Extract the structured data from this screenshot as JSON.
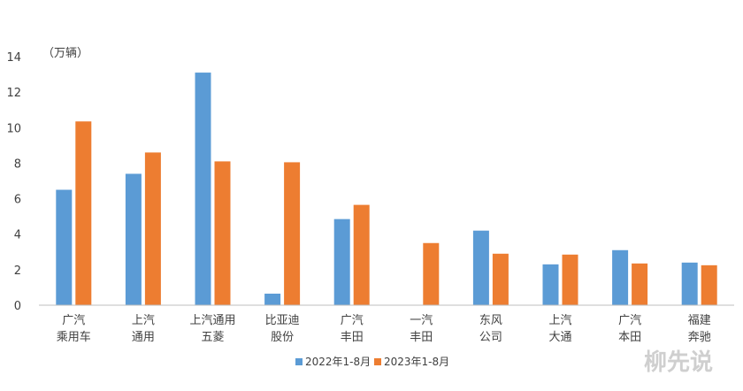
{
  "chart_data": {
    "type": "bar",
    "ylabel": "（万辆）",
    "ylim": [
      0,
      14
    ],
    "yticks": [
      "0",
      "2",
      "4",
      "6",
      "8",
      "10",
      "12",
      "14"
    ],
    "categories": [
      [
        "广汽",
        "乘用车"
      ],
      [
        "上汽",
        "通用"
      ],
      [
        "上汽通用",
        "五菱"
      ],
      [
        "比亚迪",
        "股份"
      ],
      [
        "广汽",
        "丰田"
      ],
      [
        "一汽",
        "丰田"
      ],
      [
        "东风",
        "公司"
      ],
      [
        "上汽",
        "大通"
      ],
      [
        "广汽",
        "本田"
      ],
      [
        "福建",
        "奔驰"
      ]
    ],
    "series": [
      {
        "name": "2022年1-8月",
        "color": "#5B9BD5",
        "values": [
          6.5,
          7.4,
          13.1,
          0.65,
          4.85,
          0,
          4.2,
          2.3,
          3.1,
          2.4
        ]
      },
      {
        "name": "2023年1-8月",
        "color": "#ED7D31",
        "values": [
          10.35,
          8.6,
          8.1,
          8.05,
          5.65,
          3.5,
          2.9,
          2.85,
          2.35,
          2.25
        ]
      }
    ],
    "legend_position": "bottom",
    "grid": false
  },
  "watermark": "柳先说"
}
